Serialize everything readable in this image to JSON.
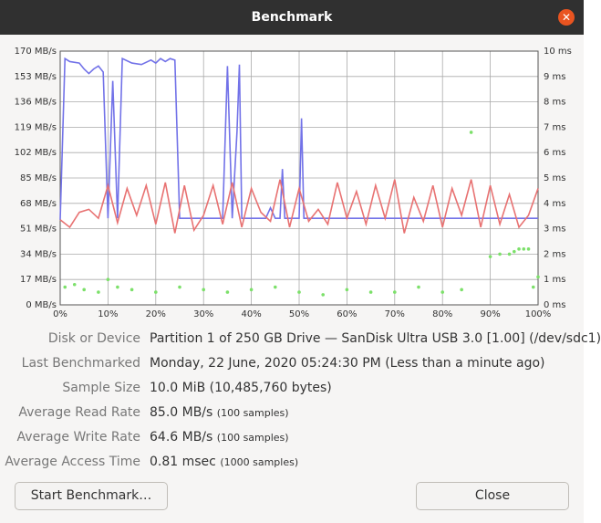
{
  "window": {
    "title": "Benchmark"
  },
  "chart_data": {
    "type": "line",
    "xlim": [
      0,
      100
    ],
    "xticks": [
      {
        "value": 0,
        "label": "0%"
      },
      {
        "value": 10,
        "label": "10%"
      },
      {
        "value": 20,
        "label": "20%"
      },
      {
        "value": 30,
        "label": "30%"
      },
      {
        "value": 40,
        "label": "40%"
      },
      {
        "value": 50,
        "label": "50%"
      },
      {
        "value": 60,
        "label": "60%"
      },
      {
        "value": 70,
        "label": "70%"
      },
      {
        "value": 80,
        "label": "80%"
      },
      {
        "value": 90,
        "label": "90%"
      },
      {
        "value": 100,
        "label": "100%"
      }
    ],
    "ylim": [
      0,
      170
    ],
    "yticks": [
      {
        "value": 0,
        "label": "0 MB/s"
      },
      {
        "value": 17,
        "label": "17 MB/s"
      },
      {
        "value": 34,
        "label": "34 MB/s"
      },
      {
        "value": 51,
        "label": "51 MB/s"
      },
      {
        "value": 68,
        "label": "68 MB/s"
      },
      {
        "value": 85,
        "label": "85 MB/s"
      },
      {
        "value": 102,
        "label": "102 MB/s"
      },
      {
        "value": 119,
        "label": "119 MB/s"
      },
      {
        "value": 136,
        "label": "136 MB/s"
      },
      {
        "value": 153,
        "label": "153 MB/s"
      },
      {
        "value": 170,
        "label": "170 MB/s"
      }
    ],
    "y2lim": [
      0,
      10
    ],
    "y2ticks": [
      {
        "value": 0,
        "label": "0 ms"
      },
      {
        "value": 1,
        "label": "1 ms"
      },
      {
        "value": 2,
        "label": "2 ms"
      },
      {
        "value": 3,
        "label": "3 ms"
      },
      {
        "value": 4,
        "label": "4 ms"
      },
      {
        "value": 5,
        "label": "5 ms"
      },
      {
        "value": 6,
        "label": "6 ms"
      },
      {
        "value": 7,
        "label": "7 ms"
      },
      {
        "value": 8,
        "label": "8 ms"
      },
      {
        "value": 9,
        "label": "9 ms"
      },
      {
        "value": 10,
        "label": "10 ms"
      }
    ],
    "grid": true,
    "series": [
      {
        "color": "#7272e8",
        "style": "line",
        "x": [
          0,
          1,
          2,
          4,
          5,
          6,
          7,
          8,
          9,
          10,
          11,
          12,
          13,
          15,
          17,
          19,
          20,
          21,
          22,
          23,
          24,
          25,
          34,
          35,
          36,
          37,
          37.5,
          38,
          43,
          44,
          45,
          46,
          46.5,
          47,
          50,
          50.5,
          51,
          100
        ],
        "values": [
          57,
          165,
          163,
          162,
          158,
          155,
          158,
          160,
          156,
          58,
          150,
          58,
          165,
          162,
          161,
          164,
          162,
          165,
          163,
          165,
          164,
          58,
          58,
          160,
          58,
          116,
          161,
          58,
          58,
          65,
          58,
          58,
          91,
          58,
          58,
          125,
          58,
          58
        ]
      },
      {
        "color": "#e87272",
        "style": "line",
        "x": [
          0,
          2,
          4,
          6,
          8,
          10,
          12,
          14,
          16,
          18,
          20,
          22,
          24,
          26,
          28,
          30,
          32,
          34,
          36,
          38,
          40,
          42,
          44,
          46,
          48,
          50,
          52,
          54,
          56,
          58,
          60,
          62,
          64,
          66,
          68,
          70,
          72,
          74,
          76,
          78,
          80,
          82,
          84,
          86,
          88,
          90,
          92,
          94,
          96,
          98,
          100
        ],
        "values": [
          57,
          52,
          62,
          64,
          58,
          80,
          55,
          78,
          60,
          80,
          54,
          82,
          48,
          80,
          50,
          60,
          80,
          54,
          82,
          52,
          78,
          62,
          56,
          84,
          52,
          78,
          56,
          64,
          54,
          82,
          58,
          76,
          54,
          80,
          58,
          84,
          48,
          72,
          56,
          80,
          52,
          78,
          60,
          84,
          52,
          80,
          54,
          74,
          52,
          60,
          78
        ]
      },
      {
        "color": "#7ce06a",
        "style": "points",
        "axis": "y2",
        "x": [
          1,
          3,
          5,
          8,
          10,
          12,
          15,
          20,
          25,
          30,
          35,
          40,
          45,
          50,
          55,
          60,
          65,
          70,
          75,
          80,
          84,
          86,
          90,
          92,
          94,
          95,
          96,
          97,
          98,
          99,
          100
        ],
        "values": [
          0.7,
          0.8,
          0.6,
          0.5,
          1.0,
          0.7,
          0.6,
          0.5,
          0.7,
          0.6,
          0.5,
          0.6,
          0.7,
          0.5,
          0.4,
          0.6,
          0.5,
          0.5,
          0.7,
          0.5,
          0.6,
          6.8,
          1.9,
          2.0,
          2.0,
          2.1,
          2.2,
          2.2,
          2.2,
          0.7,
          1.1
        ]
      }
    ]
  },
  "details": {
    "rows": [
      {
        "label": "Disk or Device",
        "value": "Partition 1 of 250 GB Drive — SanDisk Ultra USB 3.0 [1.00] (/dev/sdc1)"
      },
      {
        "label": "Last Benchmarked",
        "value": "Monday, 22 June, 2020 05:24:30 PM (Less than a minute ago)"
      },
      {
        "label": "Sample Size",
        "value": "10.0 MiB (10,485,760 bytes)"
      },
      {
        "label": "Average Read Rate",
        "value": "85.0 MB/s",
        "note": "(100 samples)"
      },
      {
        "label": "Average Write Rate",
        "value": "64.6 MB/s",
        "note": "(100 samples)"
      },
      {
        "label": "Average Access Time",
        "value": "0.81 msec",
        "note": "(1000 samples)"
      }
    ]
  },
  "buttons": [
    "Start Benchmark…",
    "Close"
  ]
}
